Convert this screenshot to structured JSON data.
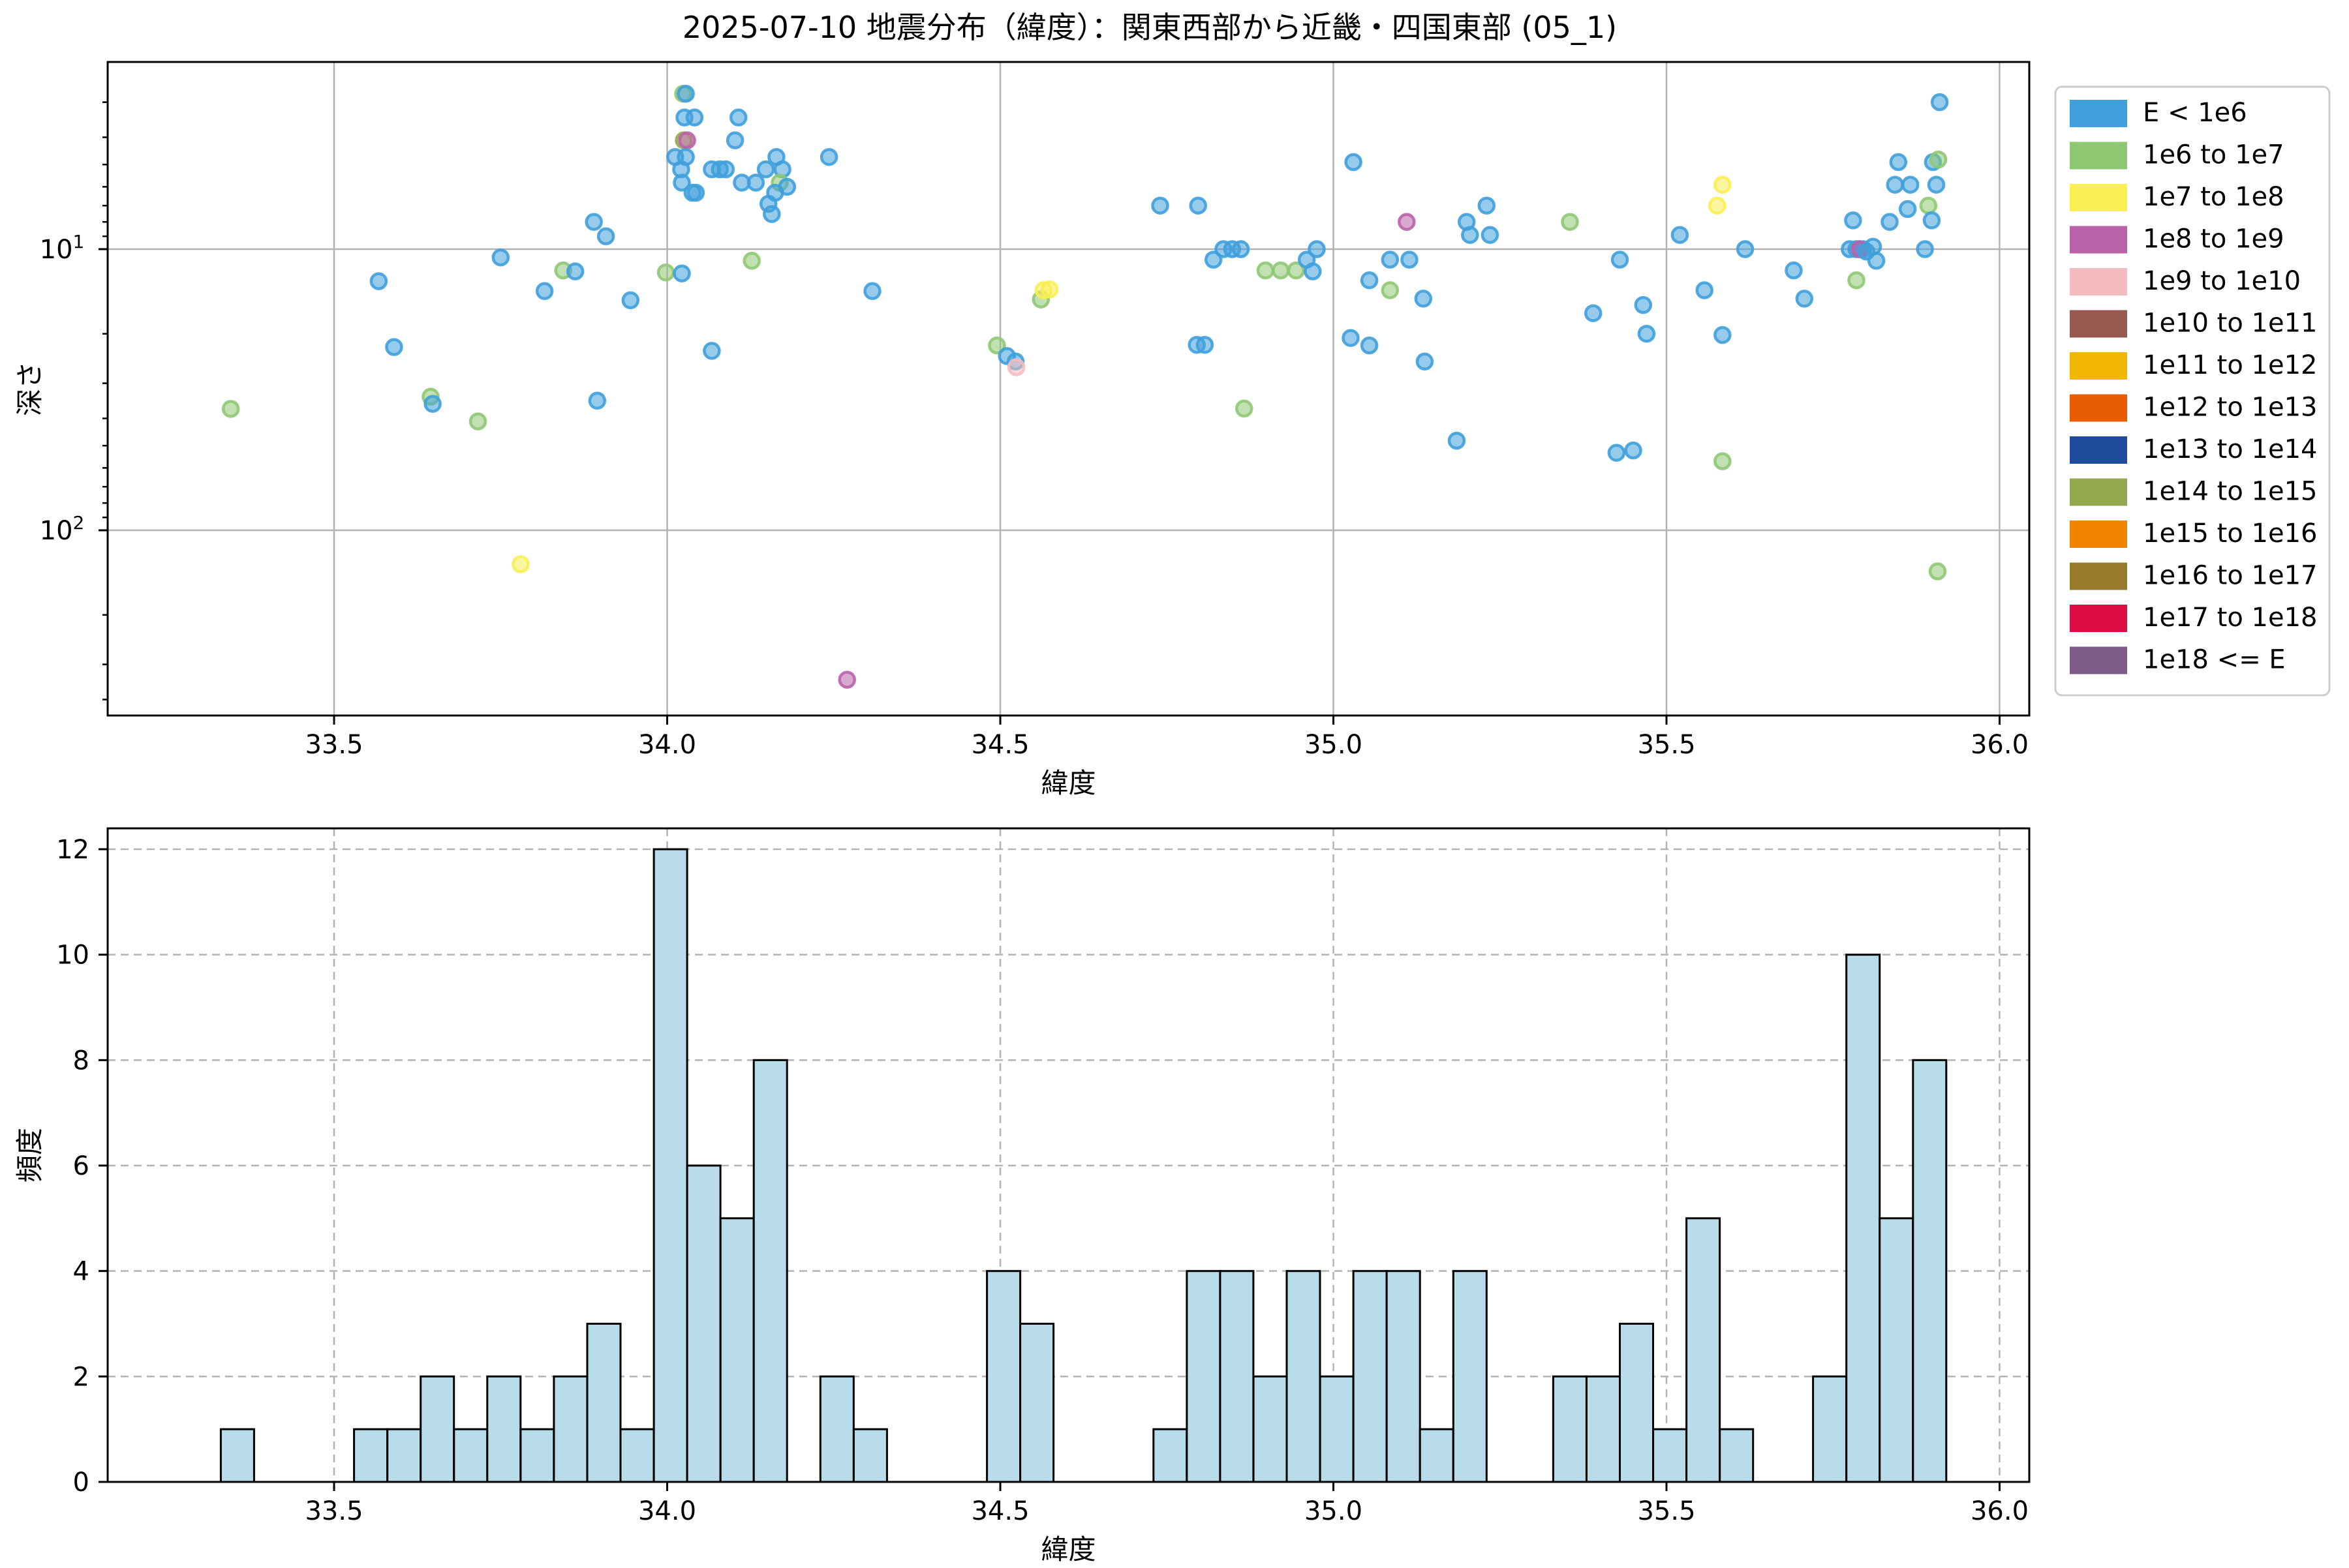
{
  "title": "2025-07-10 地震分布（緯度）：関東西部から近畿・四国東部 (05_1)",
  "colors": {
    "b": {
      "name": "E < 1e6",
      "fill": "#3fa0dc"
    },
    "g": {
      "name": "1e6 to 1e7",
      "fill": "#8fc873"
    },
    "y": {
      "name": "1e7 to 1e8",
      "fill": "#f9ee54"
    },
    "m": {
      "name": "1e8 to 1e9",
      "fill": "#ba62a8"
    },
    "k": {
      "name": "1e9 to 1e10",
      "fill": "#f4bcbe"
    },
    "br": {
      "name": "1e10 to 1e11",
      "fill": "#96584f"
    },
    "go": {
      "name": "1e11 to 1e12",
      "fill": "#f2b705"
    },
    "or": {
      "name": "1e12 to 1e13",
      "fill": "#e85d04"
    },
    "db": {
      "name": "1e13 to 1e14",
      "fill": "#1e4b9b"
    },
    "o": {
      "name": "1e14 to 1e15",
      "fill": "#94a94f"
    },
    "o2": {
      "name": "1e15 to 1e16",
      "fill": "#f28500"
    },
    "kh": {
      "name": "1e16 to 1e17",
      "fill": "#9a7b2d"
    },
    "cr": {
      "name": "1e17 to 1e18",
      "fill": "#de0c42"
    },
    "p": {
      "name": "1e18 <= E",
      "fill": "#7e5a89"
    }
  },
  "legend": {
    "entries": [
      {
        "label": "E < 1e6",
        "color": "#3fa0dc"
      },
      {
        "label": "1e6 to 1e7",
        "color": "#8fc873"
      },
      {
        "label": "1e7 to 1e8",
        "color": "#f9ee54"
      },
      {
        "label": "1e8 to 1e9",
        "color": "#ba62a8"
      },
      {
        "label": "1e9 to 1e10",
        "color": "#f4bcbe"
      },
      {
        "label": "1e10 to 1e11",
        "color": "#96584f"
      },
      {
        "label": "1e11 to 1e12",
        "color": "#f2b705"
      },
      {
        "label": "1e12 to 1e13",
        "color": "#e85d04"
      },
      {
        "label": "1e13 to 1e14",
        "color": "#1e4b9b"
      },
      {
        "label": "1e14 to 1e15",
        "color": "#94a94f"
      },
      {
        "label": "1e15 to 1e16",
        "color": "#f28500"
      },
      {
        "label": "1e16 to 1e17",
        "color": "#9a7b2d"
      },
      {
        "label": "1e17 to 1e18",
        "color": "#de0c42"
      },
      {
        "label": "1e18 <= E",
        "color": "#7e5a89"
      }
    ]
  },
  "chart_data": [
    {
      "type": "scatter",
      "title": "2025-07-10 地震分布（緯度）：関東西部から近畿・四国東部 (05_1)",
      "xlabel": "緯度",
      "ylabel": "深さ",
      "xlim": [
        33.16,
        36.045
      ],
      "ylim_depth_log_inverted": [
        2.16,
        458
      ],
      "xticks": [
        "33.5",
        "34.0",
        "34.5",
        "35.0",
        "35.5",
        "36.0"
      ],
      "xtick_values": [
        33.5,
        34.0,
        34.5,
        35.0,
        35.5,
        36.0
      ],
      "ytick_labels": [
        "10¹",
        "10²"
      ],
      "ytick_values": [
        10,
        100
      ],
      "grid": "solid",
      "legend_position": "outside-right",
      "points": [
        {
          "lat": 33.345,
          "depth": 37,
          "c": "g"
        },
        {
          "lat": 33.567,
          "depth": 13,
          "c": "b"
        },
        {
          "lat": 33.59,
          "depth": 22.3,
          "c": "b"
        },
        {
          "lat": 33.645,
          "depth": 33.5,
          "c": "g"
        },
        {
          "lat": 33.648,
          "depth": 35.5,
          "c": "b"
        },
        {
          "lat": 33.716,
          "depth": 41,
          "c": "g"
        },
        {
          "lat": 33.75,
          "depth": 10.7,
          "c": "b"
        },
        {
          "lat": 33.78,
          "depth": 132,
          "c": "y"
        },
        {
          "lat": 33.816,
          "depth": 14.1,
          "c": "b"
        },
        {
          "lat": 33.844,
          "depth": 11.9,
          "c": "g"
        },
        {
          "lat": 33.862,
          "depth": 12.0,
          "c": "b"
        },
        {
          "lat": 33.89,
          "depth": 8.0,
          "c": "b"
        },
        {
          "lat": 33.895,
          "depth": 34.6,
          "c": "b"
        },
        {
          "lat": 33.908,
          "depth": 9.0,
          "c": "b"
        },
        {
          "lat": 33.945,
          "depth": 15.2,
          "c": "b"
        },
        {
          "lat": 33.998,
          "depth": 12.1,
          "c": "g"
        },
        {
          "lat": 34.022,
          "depth": 12.2,
          "c": "b"
        },
        {
          "lat": 34.024,
          "depth": 2.8,
          "c": "g"
        },
        {
          "lat": 34.028,
          "depth": 2.8,
          "c": "b"
        },
        {
          "lat": 34.026,
          "depth": 3.4,
          "c": "b"
        },
        {
          "lat": 34.025,
          "depth": 4.1,
          "c": "o"
        },
        {
          "lat": 34.03,
          "depth": 4.1,
          "c": "m"
        },
        {
          "lat": 34.012,
          "depth": 4.7,
          "c": "b"
        },
        {
          "lat": 34.028,
          "depth": 4.7,
          "c": "b"
        },
        {
          "lat": 34.021,
          "depth": 5.2,
          "c": "b"
        },
        {
          "lat": 34.022,
          "depth": 5.8,
          "c": "b"
        },
        {
          "lat": 34.038,
          "depth": 6.3,
          "c": "b"
        },
        {
          "lat": 34.041,
          "depth": 3.4,
          "c": "b"
        },
        {
          "lat": 34.043,
          "depth": 6.3,
          "c": "b"
        },
        {
          "lat": 34.067,
          "depth": 5.2,
          "c": "b"
        },
        {
          "lat": 34.079,
          "depth": 5.2,
          "c": "b"
        },
        {
          "lat": 34.088,
          "depth": 5.2,
          "c": "b"
        },
        {
          "lat": 34.067,
          "depth": 23,
          "c": "b"
        },
        {
          "lat": 34.107,
          "depth": 3.4,
          "c": "b"
        },
        {
          "lat": 34.102,
          "depth": 4.1,
          "c": "b"
        },
        {
          "lat": 34.112,
          "depth": 5.8,
          "c": "b"
        },
        {
          "lat": 34.133,
          "depth": 5.8,
          "c": "b"
        },
        {
          "lat": 34.127,
          "depth": 11,
          "c": "g"
        },
        {
          "lat": 34.164,
          "depth": 4.7,
          "c": "b"
        },
        {
          "lat": 34.148,
          "depth": 5.2,
          "c": "b"
        },
        {
          "lat": 34.173,
          "depth": 5.2,
          "c": "b"
        },
        {
          "lat": 34.169,
          "depth": 5.8,
          "c": "g"
        },
        {
          "lat": 34.162,
          "depth": 6.3,
          "c": "b"
        },
        {
          "lat": 34.152,
          "depth": 6.9,
          "c": "b"
        },
        {
          "lat": 34.18,
          "depth": 6.0,
          "c": "b"
        },
        {
          "lat": 34.157,
          "depth": 7.5,
          "c": "b"
        },
        {
          "lat": 34.243,
          "depth": 4.7,
          "c": "b"
        },
        {
          "lat": 34.27,
          "depth": 340,
          "c": "m"
        },
        {
          "lat": 34.308,
          "depth": 14.1,
          "c": "b"
        },
        {
          "lat": 34.495,
          "depth": 22,
          "c": "g"
        },
        {
          "lat": 34.51,
          "depth": 24,
          "c": "b"
        },
        {
          "lat": 34.523,
          "depth": 25.1,
          "c": "b"
        },
        {
          "lat": 34.524,
          "depth": 26.3,
          "c": "k"
        },
        {
          "lat": 34.561,
          "depth": 15.1,
          "c": "g"
        },
        {
          "lat": 34.565,
          "depth": 14.0,
          "c": "y"
        },
        {
          "lat": 34.574,
          "depth": 13.9,
          "c": "y"
        },
        {
          "lat": 34.74,
          "depth": 7.0,
          "c": "b"
        },
        {
          "lat": 34.797,
          "depth": 7.0,
          "c": "b"
        },
        {
          "lat": 34.82,
          "depth": 10.9,
          "c": "b"
        },
        {
          "lat": 34.795,
          "depth": 21.9,
          "c": "b"
        },
        {
          "lat": 34.807,
          "depth": 21.9,
          "c": "b"
        },
        {
          "lat": 34.835,
          "depth": 10,
          "c": "b"
        },
        {
          "lat": 34.848,
          "depth": 10,
          "c": "b"
        },
        {
          "lat": 34.861,
          "depth": 10,
          "c": "b"
        },
        {
          "lat": 34.866,
          "depth": 36.9,
          "c": "g"
        },
        {
          "lat": 34.898,
          "depth": 11.9,
          "c": "g"
        },
        {
          "lat": 34.921,
          "depth": 11.9,
          "c": "g"
        },
        {
          "lat": 34.944,
          "depth": 11.9,
          "c": "g"
        },
        {
          "lat": 34.96,
          "depth": 10.9,
          "c": "b"
        },
        {
          "lat": 34.969,
          "depth": 12.0,
          "c": "b"
        },
        {
          "lat": 34.975,
          "depth": 10.0,
          "c": "b"
        },
        {
          "lat": 35.03,
          "depth": 4.9,
          "c": "b"
        },
        {
          "lat": 35.026,
          "depth": 20.7,
          "c": "b"
        },
        {
          "lat": 35.054,
          "depth": 12.9,
          "c": "b"
        },
        {
          "lat": 35.054,
          "depth": 22.0,
          "c": "b"
        },
        {
          "lat": 35.085,
          "depth": 10.9,
          "c": "b"
        },
        {
          "lat": 35.085,
          "depth": 14.0,
          "c": "g"
        },
        {
          "lat": 35.11,
          "depth": 8.0,
          "c": "m"
        },
        {
          "lat": 35.114,
          "depth": 10.9,
          "c": "b"
        },
        {
          "lat": 35.135,
          "depth": 15.0,
          "c": "b"
        },
        {
          "lat": 35.137,
          "depth": 25.1,
          "c": "b"
        },
        {
          "lat": 35.185,
          "depth": 48,
          "c": "b"
        },
        {
          "lat": 35.2,
          "depth": 8.0,
          "c": "b"
        },
        {
          "lat": 35.205,
          "depth": 8.9,
          "c": "b"
        },
        {
          "lat": 35.23,
          "depth": 7.0,
          "c": "b"
        },
        {
          "lat": 35.235,
          "depth": 8.9,
          "c": "b"
        },
        {
          "lat": 35.355,
          "depth": 8.0,
          "c": "g"
        },
        {
          "lat": 35.39,
          "depth": 16.9,
          "c": "b"
        },
        {
          "lat": 35.425,
          "depth": 53,
          "c": "b"
        },
        {
          "lat": 35.43,
          "depth": 10.9,
          "c": "b"
        },
        {
          "lat": 35.45,
          "depth": 52,
          "c": "b"
        },
        {
          "lat": 35.465,
          "depth": 15.8,
          "c": "b"
        },
        {
          "lat": 35.47,
          "depth": 20.0,
          "c": "b"
        },
        {
          "lat": 35.52,
          "depth": 8.9,
          "c": "b"
        },
        {
          "lat": 35.576,
          "depth": 7.0,
          "c": "y"
        },
        {
          "lat": 35.584,
          "depth": 5.9,
          "c": "y"
        },
        {
          "lat": 35.557,
          "depth": 14.0,
          "c": "b"
        },
        {
          "lat": 35.584,
          "depth": 20.2,
          "c": "b"
        },
        {
          "lat": 35.584,
          "depth": 56.8,
          "c": "g"
        },
        {
          "lat": 35.618,
          "depth": 10.0,
          "c": "b"
        },
        {
          "lat": 35.691,
          "depth": 11.9,
          "c": "b"
        },
        {
          "lat": 35.707,
          "depth": 15.0,
          "c": "b"
        },
        {
          "lat": 35.775,
          "depth": 10,
          "c": "b"
        },
        {
          "lat": 35.78,
          "depth": 7.9,
          "c": "b"
        },
        {
          "lat": 35.785,
          "depth": 10,
          "c": "b"
        },
        {
          "lat": 35.79,
          "depth": 10,
          "c": "b"
        },
        {
          "lat": 35.795,
          "depth": 10,
          "c": "b"
        },
        {
          "lat": 35.79,
          "depth": 10,
          "c": "m"
        },
        {
          "lat": 35.785,
          "depth": 12.9,
          "c": "g"
        },
        {
          "lat": 35.8,
          "depth": 10.2,
          "c": "b"
        },
        {
          "lat": 35.81,
          "depth": 9.8,
          "c": "b"
        },
        {
          "lat": 35.815,
          "depth": 11,
          "c": "b"
        },
        {
          "lat": 35.843,
          "depth": 5.9,
          "c": "b"
        },
        {
          "lat": 35.848,
          "depth": 4.9,
          "c": "b"
        },
        {
          "lat": 35.866,
          "depth": 5.9,
          "c": "b"
        },
        {
          "lat": 35.835,
          "depth": 8.0,
          "c": "b"
        },
        {
          "lat": 35.862,
          "depth": 7.2,
          "c": "b"
        },
        {
          "lat": 35.888,
          "depth": 10,
          "c": "b"
        },
        {
          "lat": 35.893,
          "depth": 7.0,
          "c": "g"
        },
        {
          "lat": 35.898,
          "depth": 7.9,
          "c": "b"
        },
        {
          "lat": 35.9,
          "depth": 4.9,
          "c": "b"
        },
        {
          "lat": 35.905,
          "depth": 5.9,
          "c": "b"
        },
        {
          "lat": 35.908,
          "depth": 4.8,
          "c": "g"
        },
        {
          "lat": 35.91,
          "depth": 3.0,
          "c": "b"
        },
        {
          "lat": 35.907,
          "depth": 140,
          "c": "g"
        }
      ]
    },
    {
      "type": "bar",
      "xlabel": "緯度",
      "ylabel": "頻度",
      "xticks": [
        "33.5",
        "34.0",
        "34.5",
        "35.0",
        "35.5",
        "36.0"
      ],
      "xtick_values": [
        33.5,
        34.0,
        34.5,
        35.0,
        35.5,
        36.0
      ],
      "yticks": [
        0,
        2,
        4,
        6,
        8,
        10,
        12
      ],
      "ylim": [
        0,
        12.4
      ],
      "grid": "dashed",
      "bar_width": 0.05,
      "bar_color": "#b8dce9",
      "bins": [
        {
          "start": 33.33,
          "count": 1
        },
        {
          "start": 33.53,
          "count": 1
        },
        {
          "start": 33.58,
          "count": 1
        },
        {
          "start": 33.63,
          "count": 2
        },
        {
          "start": 33.68,
          "count": 1
        },
        {
          "start": 33.73,
          "count": 2
        },
        {
          "start": 33.78,
          "count": 1
        },
        {
          "start": 33.83,
          "count": 2
        },
        {
          "start": 33.88,
          "count": 3
        },
        {
          "start": 33.93,
          "count": 1
        },
        {
          "start": 33.98,
          "count": 12
        },
        {
          "start": 34.03,
          "count": 6
        },
        {
          "start": 34.08,
          "count": 5
        },
        {
          "start": 34.13,
          "count": 8
        },
        {
          "start": 34.23,
          "count": 2
        },
        {
          "start": 34.28,
          "count": 1
        },
        {
          "start": 34.48,
          "count": 4
        },
        {
          "start": 34.53,
          "count": 3
        },
        {
          "start": 34.73,
          "count": 1
        },
        {
          "start": 34.78,
          "count": 4
        },
        {
          "start": 34.83,
          "count": 4
        },
        {
          "start": 34.88,
          "count": 2
        },
        {
          "start": 34.93,
          "count": 4
        },
        {
          "start": 34.98,
          "count": 2
        },
        {
          "start": 35.03,
          "count": 4
        },
        {
          "start": 35.08,
          "count": 4
        },
        {
          "start": 35.13,
          "count": 1
        },
        {
          "start": 35.18,
          "count": 4
        },
        {
          "start": 35.33,
          "count": 2
        },
        {
          "start": 35.38,
          "count": 2
        },
        {
          "start": 35.43,
          "count": 3
        },
        {
          "start": 35.48,
          "count": 1
        },
        {
          "start": 35.53,
          "count": 5
        },
        {
          "start": 35.58,
          "count": 1
        },
        {
          "start": 35.72,
          "count": 2
        },
        {
          "start": 35.77,
          "count": 10
        },
        {
          "start": 35.82,
          "count": 5
        },
        {
          "start": 35.87,
          "count": 8
        }
      ]
    }
  ]
}
